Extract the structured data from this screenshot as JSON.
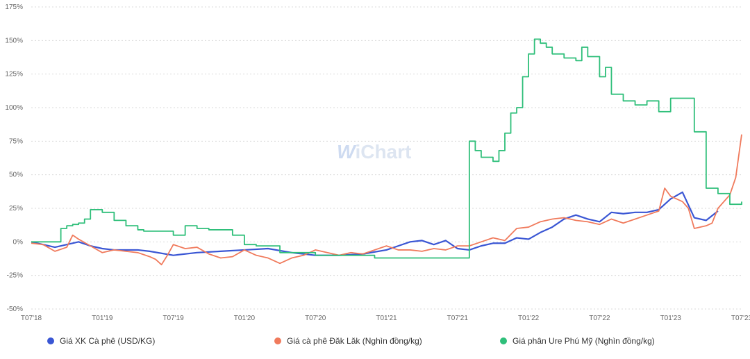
{
  "watermark": {
    "w": "W",
    "rest": "iChart"
  },
  "colors": {
    "xk": "#3a56d4",
    "daklak": "#f07a5c",
    "ure": "#2fbf7a"
  },
  "legend": [
    {
      "label": "Giá XK Cà phê (USD/KG)",
      "color": "#3a56d4"
    },
    {
      "label": "Giá cà phê Đăk Lăk (Nghìn đồng/kg)",
      "color": "#f07a5c"
    },
    {
      "label": "Giá phân Ure Phú Mỹ (Nghìn đồng/kg)",
      "color": "#2fbf7a"
    }
  ],
  "chart_data": {
    "type": "line",
    "title": "",
    "xlabel": "",
    "ylabel": "",
    "x_ticks": [
      "T07'18",
      "T01'19",
      "T07'19",
      "T01'20",
      "T07'20",
      "T01'21",
      "T07'21",
      "T01'22",
      "T07'22",
      "T01'23",
      "T07'23"
    ],
    "y_ticks": [
      "-50%",
      "-25%",
      "0%",
      "25%",
      "50%",
      "75%",
      "100%",
      "125%",
      "150%",
      "175%"
    ],
    "ylim": [
      -50,
      175
    ],
    "xlim": [
      0,
      60
    ],
    "x_unit": "months since T07'18",
    "grid": true,
    "legend_position": "bottom",
    "series": [
      {
        "name": "Giá XK Cà phê (USD/KG)",
        "key": "xk",
        "x": [
          0,
          2,
          3,
          4,
          5,
          6,
          7,
          8,
          9,
          10,
          12,
          14,
          16,
          18,
          20,
          22,
          24,
          26,
          28,
          30,
          31,
          32,
          33,
          34,
          35,
          36,
          37,
          38,
          39,
          40,
          41,
          42,
          43,
          44,
          45,
          46,
          47,
          48,
          49,
          50,
          51,
          52,
          53,
          54,
          55,
          56,
          57,
          58
        ],
        "values": [
          0,
          -4,
          -2,
          0,
          -3,
          -5,
          -6,
          -6,
          -6,
          -7,
          -10,
          -8,
          -7,
          -6,
          -5,
          -8,
          -10,
          -10,
          -9,
          -6,
          -3,
          0,
          1,
          -2,
          1,
          -5,
          -6,
          -3,
          -1,
          -1,
          3,
          2,
          7,
          11,
          17,
          20,
          17,
          15,
          22,
          21,
          22,
          22,
          24,
          32,
          37,
          18,
          16,
          23
        ]
      },
      {
        "name": "Giá cà phê Đăk Lăk (Nghìn đồng/kg)",
        "key": "daklak",
        "x": [
          0,
          1,
          2,
          3,
          3.5,
          4,
          5,
          6,
          7,
          8,
          9,
          10,
          10.5,
          11,
          11.5,
          12,
          13,
          14,
          15,
          16,
          17,
          18,
          19,
          20,
          21,
          21.5,
          22,
          23,
          24,
          25,
          26,
          27,
          28,
          29,
          30,
          31,
          32,
          33,
          34,
          35,
          36,
          37,
          38,
          39,
          40,
          41,
          42,
          43,
          44,
          45,
          46,
          47,
          48,
          49,
          50,
          51,
          52,
          53,
          53.5,
          54,
          55,
          55.5,
          56,
          57,
          57.5,
          58,
          59,
          59.5,
          60
        ],
        "values": [
          -1,
          -2,
          -7,
          -4,
          5,
          2,
          -3,
          -8,
          -6,
          -7,
          -8,
          -11,
          -13,
          -17,
          -10,
          -2,
          -5,
          -4,
          -9,
          -12,
          -11,
          -6,
          -10,
          -12,
          -16,
          -14,
          -12,
          -10,
          -6,
          -8,
          -10,
          -8,
          -9,
          -6,
          -3,
          -6,
          -6,
          -7,
          -5,
          -6,
          -3,
          -3,
          0,
          3,
          1,
          10,
          11,
          15,
          17,
          18,
          16,
          15,
          13,
          17,
          14,
          17,
          20,
          23,
          40,
          34,
          30,
          25,
          10,
          12,
          14,
          25,
          35,
          48,
          80
        ]
      },
      {
        "name": "Giá phân Ure Phú Mỹ (Nghìn đồng/kg)",
        "key": "ure",
        "x": [
          0,
          1,
          2,
          2.5,
          3,
          3.5,
          4,
          4.5,
          5,
          6,
          7,
          8,
          9,
          9.5,
          10,
          11,
          12,
          13,
          14,
          15,
          16,
          17,
          18,
          19,
          20,
          21,
          22,
          23,
          24,
          25,
          26,
          27,
          28,
          29,
          30,
          31,
          32,
          33,
          34,
          35,
          36,
          37,
          37.5,
          38,
          39,
          39.5,
          40,
          40.5,
          41,
          41.5,
          42,
          42.5,
          43,
          43.5,
          44,
          45,
          46,
          46.5,
          47,
          48,
          48.5,
          49,
          50,
          51,
          52,
          53,
          54,
          55,
          56,
          57,
          58,
          59,
          60
        ],
        "values": [
          0,
          0,
          0,
          10,
          12,
          13,
          14,
          17,
          24,
          22,
          16,
          12,
          9,
          8,
          8,
          8,
          5,
          12,
          10,
          9,
          9,
          5,
          -2,
          -3,
          -3,
          -8,
          -8,
          -8,
          -10,
          -10,
          -10,
          -10,
          -10,
          -12,
          -12,
          -12,
          -12,
          -12,
          -12,
          -12,
          -12,
          75,
          68,
          63,
          60,
          68,
          81,
          96,
          100,
          123,
          140,
          151,
          148,
          145,
          140,
          137,
          135,
          145,
          138,
          123,
          130,
          110,
          105,
          102,
          105,
          97,
          107,
          107,
          82,
          40,
          36,
          28,
          30
        ]
      }
    ]
  }
}
